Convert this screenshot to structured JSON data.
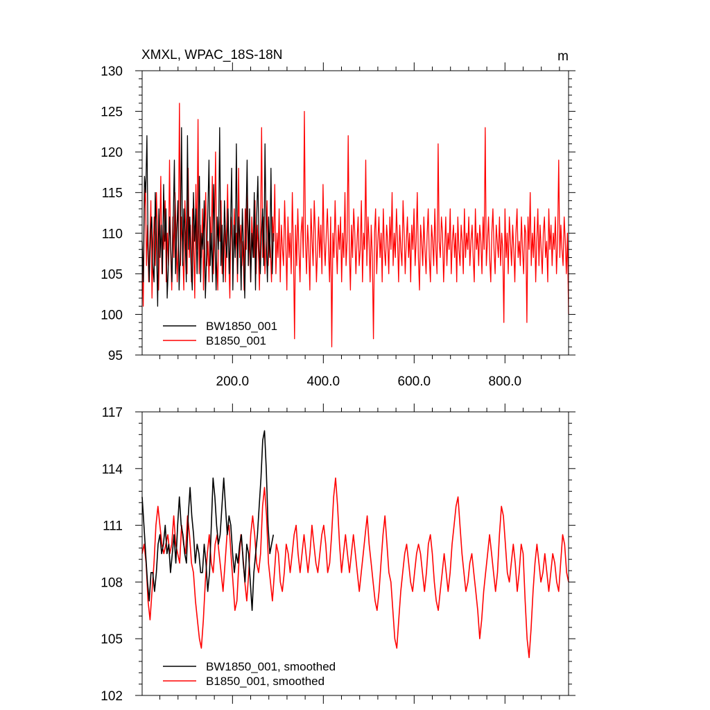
{
  "chart_data": [
    {
      "type": "line",
      "title": "XMXL, WPAC_18S-18N",
      "units": "m",
      "xlabel": "",
      "ylabel": "",
      "xlim": [
        1,
        940
      ],
      "ylim": [
        95,
        130
      ],
      "xticks": [
        200,
        400,
        600,
        800
      ],
      "xtick_labels": [
        "200.0",
        "400.0",
        "600.0",
        "800.0"
      ],
      "yticks": [
        95,
        100,
        105,
        110,
        115,
        120,
        125,
        130
      ],
      "ytick_labels": [
        "95",
        "100",
        "105",
        "110",
        "115",
        "120",
        "125",
        "130"
      ],
      "legend_position": "bottom-left",
      "series": [
        {
          "name": "BW1850_001",
          "color": "#000000",
          "x_start": 1,
          "x_end": 290,
          "values": [
            109,
            104,
            117,
            115,
            122,
            108,
            104,
            110,
            112,
            106,
            104,
            115,
            109,
            101,
            113,
            107,
            111,
            105,
            116,
            109,
            113,
            102,
            106,
            112,
            108,
            104,
            111,
            119,
            105,
            110,
            114,
            103,
            108,
            123,
            106,
            113,
            110,
            104,
            122,
            108,
            112,
            106,
            103,
            115,
            109,
            113,
            105,
            111,
            117,
            104,
            110,
            108,
            114,
            102,
            107,
            112,
            119,
            106,
            110,
            104,
            116,
            109,
            103,
            112,
            108,
            123,
            106,
            111,
            104,
            114,
            109,
            107,
            113,
            105,
            110,
            118,
            103,
            111,
            107,
            121,
            105,
            112,
            109,
            103,
            113,
            108,
            102,
            111,
            119,
            106,
            113,
            104,
            110,
            107,
            115,
            103,
            112,
            117,
            108,
            105,
            110,
            113,
            106,
            121,
            109,
            104,
            112,
            107,
            118,
            105,
            110
          ]
        },
        {
          "name": "B1850_001",
          "color": "#ff0000",
          "x_start": 1,
          "x_end": 940,
          "values": [
            107,
            101,
            113,
            116,
            106,
            111,
            104,
            109,
            114,
            102,
            108,
            112,
            106,
            115,
            110,
            103,
            109,
            117,
            105,
            111,
            108,
            114,
            104,
            110,
            106,
            119,
            108,
            103,
            112,
            107,
            115,
            110,
            104,
            109,
            126,
            106,
            112,
            108,
            103,
            114,
            110,
            105,
            118,
            107,
            111,
            104,
            113,
            109,
            102,
            116,
            108,
            124,
            105,
            111,
            107,
            113,
            103,
            110,
            115,
            106,
            109,
            104,
            112,
            108,
            117,
            105,
            110,
            120,
            107,
            103,
            112,
            109,
            114,
            105,
            108,
            111,
            104,
            110,
            116,
            107,
            102,
            112,
            109,
            105,
            113,
            108,
            110,
            104,
            118,
            107,
            111,
            106,
            109,
            103,
            113,
            108,
            115,
            106,
            110,
            104,
            112,
            109,
            107,
            114,
            105,
            111,
            108,
            103,
            110,
            123,
            107,
            112,
            105,
            109,
            114,
            106,
            110,
            108,
            104,
            112,
            109,
            116,
            105,
            110,
            107,
            113,
            104,
            111,
            108,
            106,
            114,
            109,
            103,
            112,
            107,
            110,
            105,
            115,
            108,
            97,
            111,
            106,
            113,
            108,
            104,
            110,
            112,
            107,
            125,
            109,
            105,
            111,
            108,
            103,
            113,
            109,
            106,
            114,
            110,
            104,
            108,
            112,
            107,
            111,
            105,
            116,
            109,
            106,
            110,
            113,
            108,
            104,
            112,
            96,
            110,
            107,
            114,
            109,
            105,
            111,
            108,
            112,
            104,
            110,
            107,
            115,
            106,
            109,
            122,
            108,
            103,
            111,
            107,
            113,
            110,
            105,
            109,
            112,
            106,
            108,
            114,
            104,
            110,
            108,
            119,
            106,
            112,
            109,
            104,
            111,
            107,
            97,
            110,
            113,
            105,
            109,
            112,
            107,
            110,
            104,
            113,
            108,
            106,
            111,
            109,
            105,
            112,
            108,
            115,
            106,
            110,
            107,
            113,
            109,
            104,
            111,
            108,
            106,
            114,
            110,
            105,
            109,
            112,
            107,
            110,
            104,
            111,
            108,
            113,
            106,
            109,
            115,
            107,
            103,
            111,
            109,
            106,
            112,
            108,
            105,
            110,
            113,
            107,
            104,
            111,
            109,
            106,
            113,
            108,
            105,
            121,
            109,
            107,
            112,
            110,
            104,
            108,
            112,
            106,
            110,
            108,
            113,
            105,
            109,
            111,
            107,
            110,
            104,
            112,
            108,
            106,
            111,
            109,
            105,
            113,
            107,
            110,
            108,
            112,
            106,
            109,
            111,
            107,
            104,
            113,
            108,
            110,
            106,
            111,
            109,
            105,
            112,
            108,
            123,
            106,
            109,
            112,
            107,
            104,
            110,
            113,
            108,
            105,
            111,
            109,
            107,
            112,
            106,
            110,
            108,
            99,
            113,
            107,
            110,
            105,
            112,
            109,
            106,
            111,
            108,
            104,
            110,
            113,
            107,
            109,
            106,
            112,
            108,
            105,
            111,
            110,
            99,
            112,
            108,
            115,
            106,
            110,
            107,
            112,
            104,
            109,
            113,
            106,
            111,
            108,
            105,
            110,
            112,
            107,
            109,
            104,
            113,
            108,
            111,
            106,
            110,
            108,
            112,
            105,
            109,
            119,
            107,
            111,
            108,
            106,
            112,
            109,
            105,
            110,
            100
          ]
        }
      ]
    },
    {
      "type": "line",
      "title": "",
      "xlabel": "",
      "ylabel": "",
      "xlim": [
        1,
        940
      ],
      "ylim": [
        102,
        117
      ],
      "xticks": [
        200,
        400,
        600,
        800
      ],
      "yticks": [
        102,
        105,
        108,
        111,
        114,
        117
      ],
      "ytick_labels": [
        "102",
        "105",
        "108",
        "111",
        "114",
        "117"
      ],
      "legend_position": "bottom-left",
      "series": [
        {
          "name": "BW1850_001, smoothed",
          "color": "#000000",
          "x_start": 1,
          "x_end": 290,
          "values": [
            112.5,
            111,
            109.5,
            108,
            107,
            108.5,
            108.5,
            107.5,
            108.5,
            110,
            110.5,
            109.5,
            110,
            111,
            109.5,
            110,
            108.5,
            109.5,
            110.5,
            109,
            111,
            112.5,
            111,
            110.5,
            109.5,
            109,
            111.5,
            113,
            111.5,
            110.5,
            109,
            110,
            109.5,
            108.5,
            108.5,
            110,
            109,
            107.5,
            108.5,
            111,
            113.5,
            112.5,
            111,
            110,
            110.5,
            112,
            113.5,
            112,
            110.5,
            111.5,
            111,
            109.5,
            108.5,
            109.5,
            109,
            110,
            110.5,
            109,
            108,
            110,
            109.5,
            108,
            106.5,
            108.5,
            109.5,
            110.5,
            112,
            113.5,
            115.5,
            116,
            114,
            111,
            109.5,
            110,
            110.5
          ]
        },
        {
          "name": "B1850_001, smoothed",
          "color": "#ff0000",
          "x_start": 1,
          "x_end": 940,
          "values": [
            109.5,
            110,
            109,
            107,
            106,
            107.5,
            109,
            111,
            112,
            111,
            110,
            109.5,
            110,
            110.5,
            109.5,
            110,
            111.5,
            110,
            109.5,
            109,
            111,
            110,
            109.5,
            111.5,
            110.5,
            109,
            108.5,
            107,
            106,
            105,
            104.5,
            106,
            108,
            109.5,
            110.5,
            109,
            108.5,
            110,
            110.5,
            109.5,
            108.5,
            107.5,
            109,
            110.5,
            111,
            109.5,
            108,
            106.5,
            107,
            109,
            110.5,
            109.5,
            108,
            107,
            108.5,
            110.5,
            111.5,
            110.5,
            109,
            108.5,
            109.5,
            112,
            113,
            111.5,
            109,
            108,
            107,
            108.5,
            110,
            109.5,
            108,
            107.5,
            108.5,
            110,
            109.5,
            108.5,
            109.5,
            110.5,
            111,
            109.5,
            108.5,
            109.5,
            110.5,
            109.5,
            108.5,
            109.5,
            111,
            110,
            109,
            108.5,
            109.5,
            110.5,
            111,
            110,
            108.5,
            109,
            110.5,
            112.5,
            113.5,
            112,
            110,
            108.5,
            109.5,
            110.5,
            109.5,
            108.5,
            109.5,
            110.5,
            109.5,
            108.5,
            107.5,
            108.5,
            109.5,
            110.5,
            111.5,
            110,
            109,
            108,
            107,
            106.5,
            107.5,
            109,
            110.5,
            111.5,
            110,
            108.5,
            108,
            106.5,
            105,
            104.5,
            106,
            107.5,
            108.5,
            109.5,
            110,
            109,
            108,
            107.5,
            108.5,
            109.5,
            110,
            109.5,
            108.5,
            107.5,
            108.5,
            110,
            110.5,
            109.5,
            108,
            107,
            106.5,
            107.5,
            108.5,
            109.5,
            108.5,
            107.5,
            108.5,
            110,
            111,
            112,
            112.5,
            111,
            109.5,
            108.5,
            107.5,
            108,
            109,
            109.5,
            108.5,
            107.5,
            106.5,
            105,
            106,
            107.5,
            108.5,
            109.5,
            110.5,
            109.5,
            108.5,
            107.5,
            108.5,
            110.5,
            112,
            111.5,
            110,
            108.5,
            108,
            109,
            110,
            109,
            107.5,
            108.5,
            110,
            109.5,
            107,
            105,
            104,
            105.5,
            107.5,
            109,
            110,
            109,
            108,
            108.5,
            109.5,
            108.5,
            107.5,
            108.5,
            109.5,
            109,
            108,
            107.5,
            109,
            110.5,
            110,
            108.5,
            108
          ]
        }
      ]
    }
  ]
}
